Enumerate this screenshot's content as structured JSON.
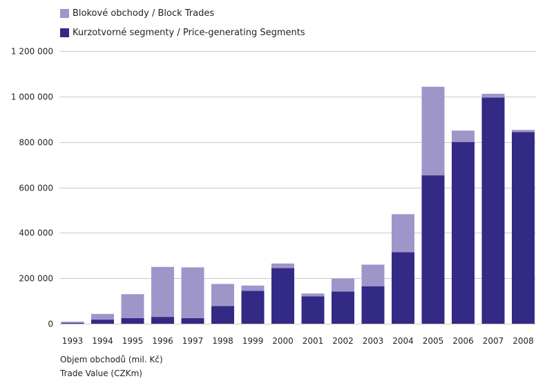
{
  "legend": {
    "block_label": "Blokové obchody / Block Trades",
    "price_label": "Kurzotvorné segmenty / Price-generating Segments"
  },
  "colors": {
    "block": "#9e96c9",
    "price": "#332a85",
    "grid": "#c8c8c8"
  },
  "footer": {
    "line1": "Objem obchodů (mil. Kč)",
    "line2": "Trade Value (CZKm)"
  },
  "chart_data": {
    "type": "bar",
    "stacked": true,
    "categories": [
      "1993",
      "1994",
      "1995",
      "1996",
      "1997",
      "1998",
      "1999",
      "2000",
      "2001",
      "2002",
      "2003",
      "2004",
      "2005",
      "2006",
      "2007",
      "2008"
    ],
    "series": [
      {
        "name": "Kurzotvorné segmenty / Price-generating Segments",
        "values": [
          3000,
          18000,
          25000,
          30000,
          25000,
          78000,
          145000,
          245000,
          120000,
          142000,
          165000,
          315000,
          653000,
          800000,
          995000,
          843000
        ]
      },
      {
        "name": "Blokové obchody / Block Trades",
        "values": [
          6000,
          25000,
          105000,
          220000,
          223000,
          97000,
          23000,
          20000,
          13000,
          57000,
          95000,
          167000,
          390000,
          50000,
          17000,
          10000
        ]
      }
    ],
    "yticks": [
      0,
      200000,
      400000,
      600000,
      800000,
      1000000,
      1200000
    ],
    "ytick_labels": [
      "0",
      "200 000",
      "400 000",
      "600 000",
      "800 000",
      "1 000 000",
      "1 200 000"
    ],
    "ylim": [
      0,
      1200000
    ],
    "grid": true,
    "legend_position": "top-left",
    "xlabel": "Objem obchodů (mil. Kč)"
  }
}
